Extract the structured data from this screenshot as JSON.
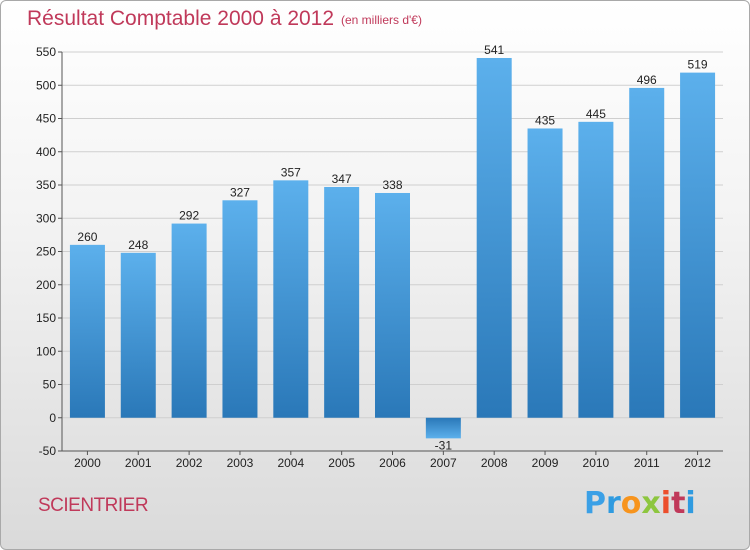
{
  "chart_data": {
    "type": "bar",
    "title": "Résultat Comptable 2000 à 2012",
    "subtitle": "(en milliers d'€)",
    "categories": [
      "2000",
      "2001",
      "2002",
      "2003",
      "2004",
      "2005",
      "2006",
      "2007",
      "2008",
      "2009",
      "2010",
      "2011",
      "2012"
    ],
    "values": [
      260,
      248,
      292,
      327,
      357,
      347,
      338,
      -31,
      541,
      435,
      445,
      496,
      519
    ],
    "ylim": [
      -50,
      550
    ],
    "yticks": [
      -50,
      0,
      50,
      100,
      150,
      200,
      250,
      300,
      350,
      400,
      450,
      500,
      550
    ],
    "grid": true,
    "bar_color": "#4a9fdf"
  },
  "footer": {
    "commune": "SCIENTRIER"
  },
  "logo": {
    "text": "Proxiti"
  }
}
